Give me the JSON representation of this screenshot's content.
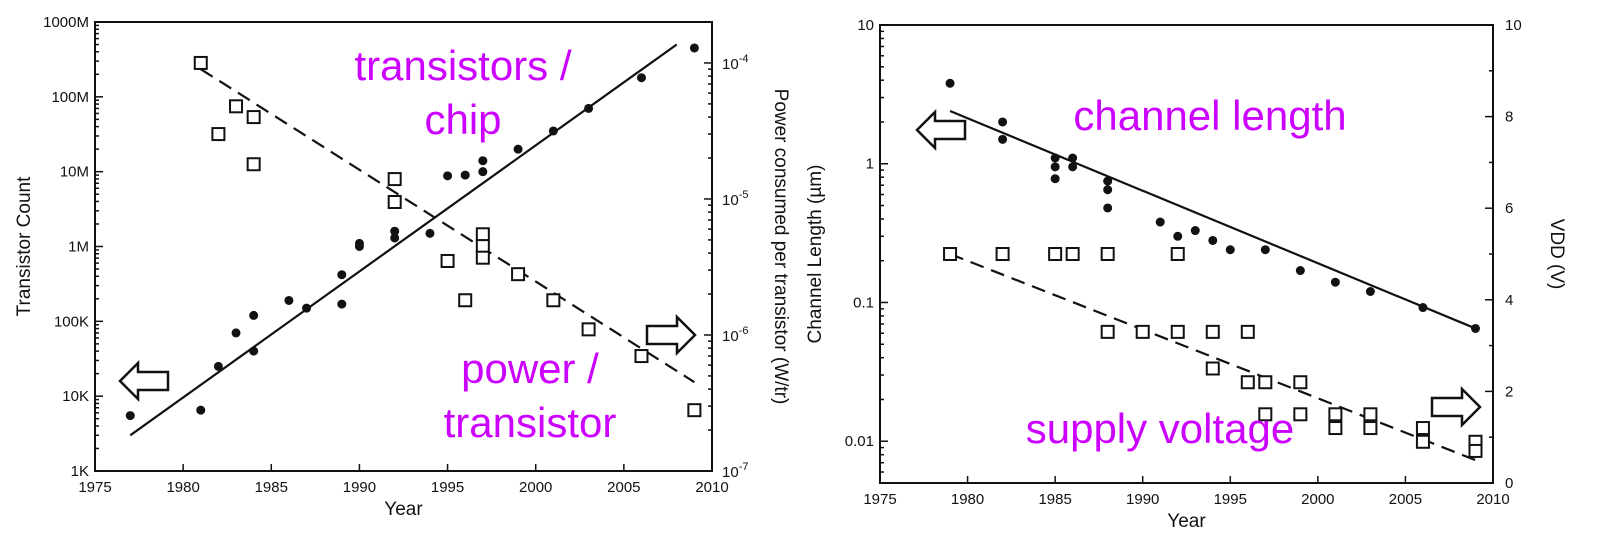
{
  "chart_data": [
    {
      "type": "scatter",
      "xlabel": "Year",
      "ylabel": "Transistor Count",
      "y2label": "Power consumed per transistor (W/tr)",
      "xlim": [
        1975,
        2010
      ],
      "ylim": [
        1000,
        1000000000
      ],
      "y2lim": [
        1e-07,
        0.0002
      ],
      "yscale": "log",
      "y2scale": "log",
      "x_ticks": [
        "1975",
        "1980",
        "1985",
        "1990",
        "1995",
        "2000",
        "2005",
        "2010"
      ],
      "y_ticks": [
        {
          "v": 1000,
          "label": "1K"
        },
        {
          "v": 10000,
          "label": "10K"
        },
        {
          "v": 100000,
          "label": "100K"
        },
        {
          "v": 1000000,
          "label": "1M"
        },
        {
          "v": 10000000,
          "label": "10M"
        },
        {
          "v": 100000000,
          "label": "100M"
        },
        {
          "v": 1000000000,
          "label": "1000M"
        }
      ],
      "y2_ticks": [
        {
          "v": 1e-07,
          "base": "10",
          "exp": "-7"
        },
        {
          "v": 1e-06,
          "base": "10",
          "exp": "-6"
        },
        {
          "v": 1e-05,
          "base": "10",
          "exp": "-5"
        },
        {
          "v": 0.0001,
          "base": "10",
          "exp": "-4"
        }
      ],
      "series": [
        {
          "marker": "filled-circle",
          "axis": "left",
          "x": [
            1977,
            1981,
            1982,
            1983,
            1984,
            1984,
            1986,
            1987,
            1989,
            1989,
            1990,
            1990,
            1992,
            1992,
            1994,
            1995,
            1996,
            1997,
            1997,
            1999,
            2001,
            2003,
            2006,
            2009
          ],
          "y": [
            5500,
            6500,
            25000,
            70000,
            120000,
            40000,
            190000,
            150000,
            420000,
            170000,
            1100000,
            1000000,
            1600000,
            1300000,
            1500000,
            8800000,
            9000000,
            14000000,
            10000000,
            20000000,
            35000000,
            70000000,
            180000000,
            450000000
          ]
        },
        {
          "marker": "open-square",
          "axis": "right",
          "x": [
            1981,
            1982,
            1983,
            1984,
            1984,
            1992,
            1992,
            1995,
            1996,
            1997,
            1997,
            1997,
            1999,
            2001,
            2003,
            2006,
            2009
          ],
          "y": [
            0.0001,
            3e-05,
            4.8e-05,
            4e-05,
            1.8e-05,
            1.4e-05,
            9.5e-06,
            3.5e-06,
            1.8e-06,
            5.5e-06,
            4.5e-06,
            3.7e-06,
            2.8e-06,
            1.8e-06,
            1.1e-06,
            7e-07,
            2.8e-07
          ]
        }
      ],
      "fit_lines": [
        {
          "style": "solid",
          "axis": "left",
          "x": [
            1977,
            2008
          ],
          "y": [
            3000,
            500000000
          ]
        },
        {
          "style": "dashed",
          "axis": "right",
          "x": [
            1981,
            2009
          ],
          "y": [
            9e-05,
            4.5e-07
          ]
        }
      ],
      "annotations": [
        {
          "lines": [
            "transistors /",
            "chip"
          ]
        },
        {
          "lines": [
            "power /",
            "transistor"
          ]
        }
      ]
    },
    {
      "type": "scatter",
      "xlabel": "Year",
      "ylabel": "Channel Length (µm)",
      "y2label": "VDD (V)",
      "xlim": [
        1975,
        2010
      ],
      "ylim": [
        0.005,
        10
      ],
      "yscale": "log",
      "y2lim": [
        0,
        10
      ],
      "y2scale": "linear",
      "x_ticks": [
        "1975",
        "1980",
        "1985",
        "1990",
        "1995",
        "2000",
        "2005",
        "2010"
      ],
      "y_ticks": [
        {
          "v": 0.01,
          "label": "0.01"
        },
        {
          "v": 0.1,
          "label": "0.1"
        },
        {
          "v": 1,
          "label": "1"
        },
        {
          "v": 10,
          "label": "10"
        }
      ],
      "y2_ticks": [
        {
          "v": 0,
          "label": "0"
        },
        {
          "v": 2,
          "label": "2"
        },
        {
          "v": 4,
          "label": "4"
        },
        {
          "v": 6,
          "label": "6"
        },
        {
          "v": 8,
          "label": "8"
        },
        {
          "v": 10,
          "label": "10"
        }
      ],
      "series": [
        {
          "marker": "filled-circle",
          "axis": "left",
          "x": [
            1979,
            1982,
            1982,
            1985,
            1985,
            1985,
            1986,
            1986,
            1988,
            1988,
            1988,
            1991,
            1992,
            1993,
            1994,
            1995,
            1997,
            1999,
            2001,
            2003,
            2006,
            2009
          ],
          "y": [
            3.8,
            2.0,
            1.5,
            1.1,
            0.95,
            0.78,
            1.1,
            0.95,
            0.75,
            0.65,
            0.48,
            0.38,
            0.3,
            0.33,
            0.28,
            0.24,
            0.24,
            0.17,
            0.14,
            0.12,
            0.092,
            0.065
          ]
        },
        {
          "marker": "open-square",
          "axis": "right",
          "x": [
            1979,
            1982,
            1985,
            1986,
            1988,
            1988,
            1990,
            1992,
            1992,
            1994,
            1994,
            1996,
            1996,
            1997,
            1997,
            1999,
            1999,
            2001,
            2001,
            2003,
            2003,
            2006,
            2006,
            2009,
            2009
          ],
          "y": [
            5.0,
            5.0,
            5.0,
            5.0,
            5.0,
            3.3,
            3.3,
            5.0,
            3.3,
            3.3,
            2.5,
            3.3,
            2.2,
            2.2,
            1.5,
            2.2,
            1.5,
            1.5,
            1.2,
            1.5,
            1.2,
            1.2,
            0.9,
            0.9,
            0.7
          ]
        }
      ],
      "fit_lines": [
        {
          "style": "solid",
          "axis": "left",
          "x": [
            1979,
            2009
          ],
          "y": [
            2.4,
            0.065
          ]
        },
        {
          "style": "dashed",
          "axis": "right",
          "x": [
            1979,
            2009
          ],
          "y": [
            5.0,
            0.5
          ]
        }
      ],
      "annotations": [
        {
          "lines": [
            "channel length"
          ]
        },
        {
          "lines": [
            "supply voltage"
          ]
        }
      ]
    }
  ]
}
